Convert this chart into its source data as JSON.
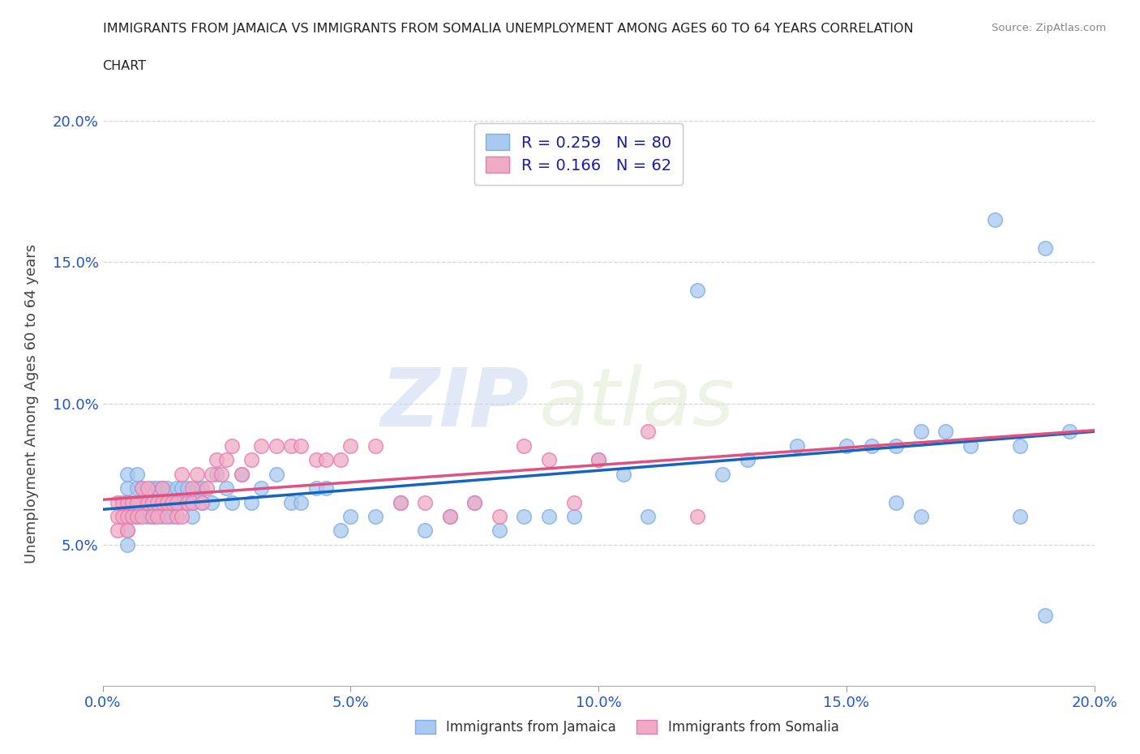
{
  "title_line1": "IMMIGRANTS FROM JAMAICA VS IMMIGRANTS FROM SOMALIA UNEMPLOYMENT AMONG AGES 60 TO 64 YEARS CORRELATION",
  "title_line2": "CHART",
  "source_text": "Source: ZipAtlas.com",
  "ylabel": "Unemployment Among Ages 60 to 64 years",
  "xlim": [
    0.0,
    0.2
  ],
  "ylim": [
    0.0,
    0.2
  ],
  "xticks": [
    0.0,
    0.05,
    0.1,
    0.15,
    0.2
  ],
  "yticks": [
    0.05,
    0.1,
    0.15,
    0.2
  ],
  "xtick_labels": [
    "0.0%",
    "5.0%",
    "10.0%",
    "15.0%",
    "20.0%"
  ],
  "ytick_labels": [
    "5.0%",
    "10.0%",
    "15.0%",
    "20.0%"
  ],
  "jamaica_color": "#aac9f0",
  "somalia_color": "#f0aac4",
  "jamaica_edge": "#7aaee8",
  "somalia_edge": "#e87ab0",
  "trendline_jamaica": "#1565c0",
  "trendline_somalia": "#e05080",
  "R_jamaica": 0.259,
  "N_jamaica": 80,
  "R_somalia": 0.166,
  "N_somalia": 62,
  "legend_jamaica": "Immigrants from Jamaica",
  "legend_somalia": "Immigrants from Somalia",
  "jamaica_x": [
    0.005,
    0.005,
    0.005,
    0.005,
    0.005,
    0.005,
    0.007,
    0.007,
    0.007,
    0.007,
    0.008,
    0.008,
    0.009,
    0.009,
    0.01,
    0.01,
    0.01,
    0.011,
    0.011,
    0.012,
    0.012,
    0.013,
    0.013,
    0.014,
    0.014,
    0.015,
    0.015,
    0.016,
    0.016,
    0.017,
    0.017,
    0.018,
    0.018,
    0.019,
    0.02,
    0.02,
    0.022,
    0.023,
    0.025,
    0.026,
    0.028,
    0.03,
    0.032,
    0.035,
    0.038,
    0.04,
    0.043,
    0.045,
    0.048,
    0.05,
    0.055,
    0.06,
    0.065,
    0.07,
    0.075,
    0.08,
    0.085,
    0.09,
    0.095,
    0.1,
    0.105,
    0.11,
    0.12,
    0.125,
    0.13,
    0.14,
    0.15,
    0.155,
    0.16,
    0.165,
    0.17,
    0.175,
    0.18,
    0.185,
    0.19,
    0.195,
    0.19,
    0.185,
    0.16,
    0.165
  ],
  "jamaica_y": [
    0.065,
    0.06,
    0.055,
    0.05,
    0.07,
    0.075,
    0.065,
    0.06,
    0.07,
    0.075,
    0.065,
    0.07,
    0.06,
    0.065,
    0.065,
    0.06,
    0.07,
    0.065,
    0.07,
    0.06,
    0.07,
    0.065,
    0.07,
    0.06,
    0.065,
    0.07,
    0.065,
    0.065,
    0.07,
    0.065,
    0.07,
    0.06,
    0.065,
    0.07,
    0.065,
    0.07,
    0.065,
    0.075,
    0.07,
    0.065,
    0.075,
    0.065,
    0.07,
    0.075,
    0.065,
    0.065,
    0.07,
    0.07,
    0.055,
    0.06,
    0.06,
    0.065,
    0.055,
    0.06,
    0.065,
    0.055,
    0.06,
    0.06,
    0.06,
    0.08,
    0.075,
    0.06,
    0.14,
    0.075,
    0.08,
    0.085,
    0.085,
    0.085,
    0.085,
    0.09,
    0.09,
    0.085,
    0.165,
    0.085,
    0.155,
    0.09,
    0.025,
    0.06,
    0.065,
    0.06
  ],
  "somalia_x": [
    0.003,
    0.003,
    0.003,
    0.004,
    0.004,
    0.005,
    0.005,
    0.005,
    0.006,
    0.006,
    0.007,
    0.007,
    0.008,
    0.008,
    0.009,
    0.009,
    0.01,
    0.01,
    0.011,
    0.011,
    0.012,
    0.012,
    0.013,
    0.013,
    0.014,
    0.015,
    0.015,
    0.016,
    0.016,
    0.017,
    0.018,
    0.018,
    0.019,
    0.02,
    0.021,
    0.022,
    0.023,
    0.024,
    0.025,
    0.026,
    0.028,
    0.03,
    0.032,
    0.035,
    0.038,
    0.04,
    0.043,
    0.045,
    0.048,
    0.05,
    0.055,
    0.06,
    0.065,
    0.07,
    0.075,
    0.08,
    0.085,
    0.09,
    0.095,
    0.1,
    0.11,
    0.12
  ],
  "somalia_y": [
    0.06,
    0.055,
    0.065,
    0.06,
    0.065,
    0.06,
    0.055,
    0.065,
    0.06,
    0.065,
    0.06,
    0.065,
    0.07,
    0.06,
    0.065,
    0.07,
    0.065,
    0.06,
    0.065,
    0.06,
    0.065,
    0.07,
    0.06,
    0.065,
    0.065,
    0.06,
    0.065,
    0.075,
    0.06,
    0.065,
    0.07,
    0.065,
    0.075,
    0.065,
    0.07,
    0.075,
    0.08,
    0.075,
    0.08,
    0.085,
    0.075,
    0.08,
    0.085,
    0.085,
    0.085,
    0.085,
    0.08,
    0.08,
    0.08,
    0.085,
    0.085,
    0.065,
    0.065,
    0.06,
    0.065,
    0.06,
    0.085,
    0.08,
    0.065,
    0.08,
    0.09,
    0.06
  ],
  "watermark_part1": "ZIP",
  "watermark_part2": "atlas"
}
